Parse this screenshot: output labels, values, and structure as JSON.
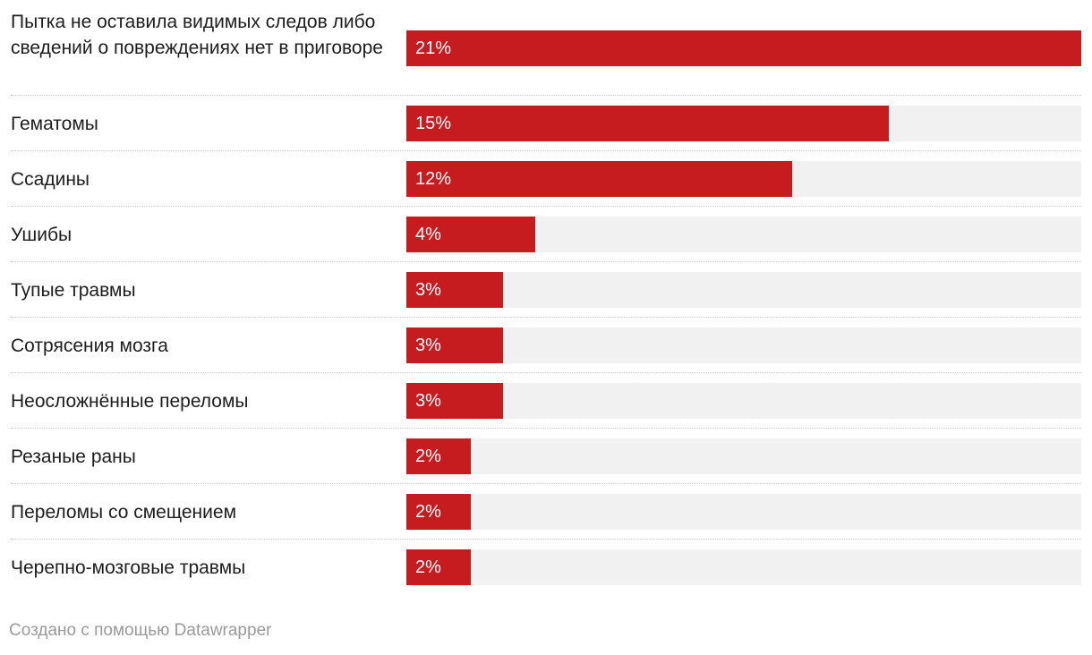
{
  "chart_data": {
    "type": "bar",
    "orientation": "horizontal",
    "categories": [
      "Пытка не оставила видимых следов либо сведений о повреждениях нет в приговоре",
      "Гематомы",
      "Ссадины",
      "Ушибы",
      "Тупые травмы",
      "Сотрясения мозга",
      "Неосложнённые переломы",
      "Резаные раны",
      "Переломы со смещением",
      "Черепно-мозговые травмы"
    ],
    "values": [
      21,
      15,
      12,
      4,
      3,
      3,
      3,
      2,
      2,
      2
    ],
    "value_labels": [
      "21%",
      "15%",
      "12%",
      "4%",
      "3%",
      "3%",
      "3%",
      "2%",
      "2%",
      "2%"
    ],
    "xlim": [
      0,
      21
    ],
    "unit": "%"
  },
  "colors": {
    "bar": "#c71c1f",
    "track": "#f1f1f1"
  },
  "footer": {
    "credit": "Создано с помощью Datawrapper"
  }
}
